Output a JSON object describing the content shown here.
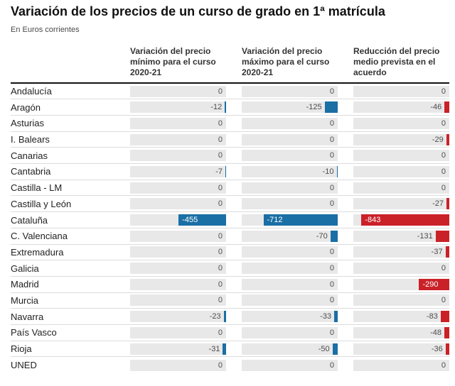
{
  "title": "Variación de los precios de un curso de grado en 1ª matrícula",
  "subtitle": "En Euros corrientes",
  "chart_data": {
    "type": "bar",
    "orientation": "horizontal",
    "unit": "euros",
    "categories": [
      "Andalucía",
      "Aragón",
      "Asturias",
      "I. Balears",
      "Canarias",
      "Cantabria",
      "Castilla - LM",
      "Castilla y León",
      "Cataluña",
      "C. Valenciana",
      "Extremadura",
      "Galicia",
      "Madrid",
      "Murcia",
      "Navarra",
      "País Vasco",
      "Rioja",
      "UNED"
    ],
    "series": [
      {
        "name": "Variación del precio mínimo para el curso 2020-21",
        "color": "#1a6fa5",
        "values": [
          0,
          -12,
          0,
          0,
          0,
          -7,
          0,
          0,
          -455,
          0,
          0,
          0,
          0,
          0,
          -23,
          0,
          -31,
          0
        ]
      },
      {
        "name": "Variación del precio máximo para el curso 2020-21",
        "color": "#1a6fa5",
        "values": [
          0,
          -125,
          0,
          0,
          0,
          -10,
          0,
          0,
          -712,
          -70,
          0,
          0,
          0,
          0,
          -33,
          0,
          -50,
          0
        ]
      },
      {
        "name": "Reducción del precio medio prevista en el acuerdo",
        "color": "#ca2128",
        "values": [
          0,
          -46,
          0,
          -29,
          0,
          0,
          0,
          -27,
          -843,
          -131,
          -37,
          0,
          -290,
          0,
          -83,
          -48,
          -36,
          0
        ]
      }
    ],
    "value_scale_max": 920,
    "xlim": [
      -920,
      0
    ],
    "bars_anchored": "right",
    "grid": false,
    "legend_position": "none",
    "inside_label_threshold": 250,
    "track_color": "#e8e8e8"
  }
}
